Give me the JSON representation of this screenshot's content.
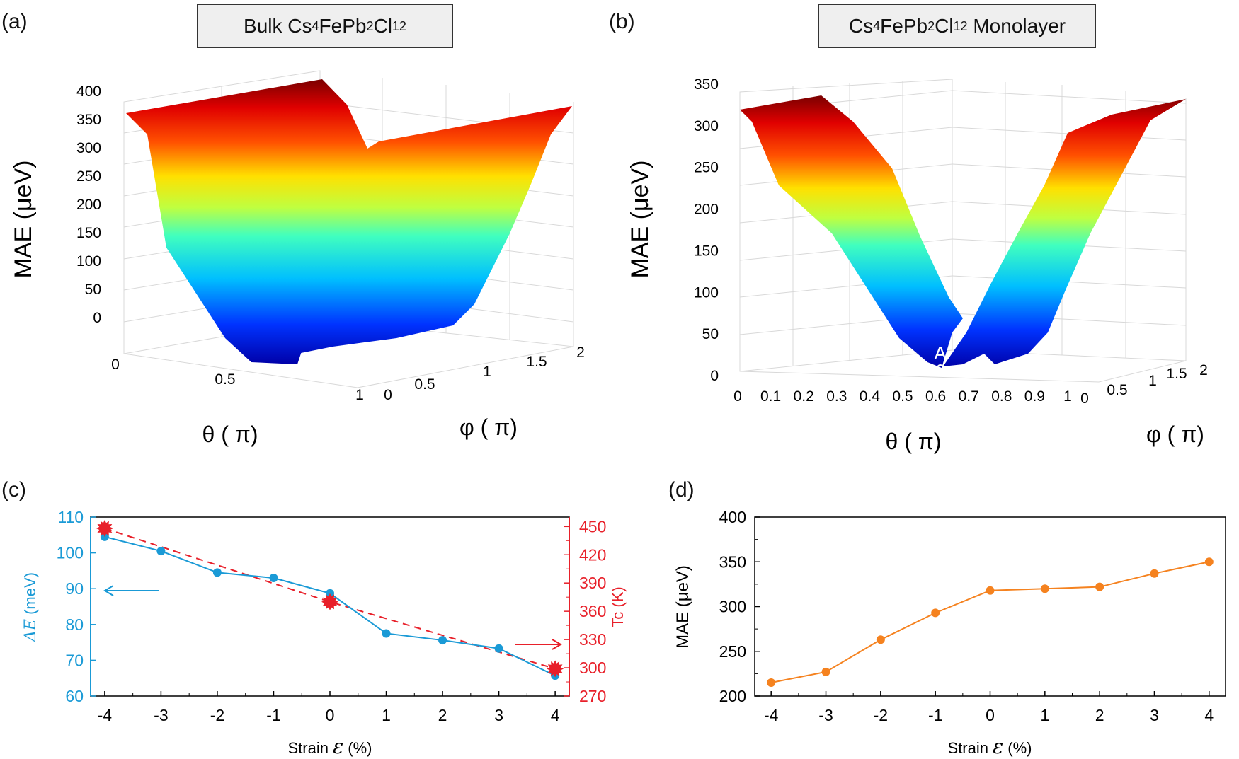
{
  "panels": {
    "a": {
      "label": "(a)",
      "title_main": "Bulk Cs",
      "title_sub1": "4",
      "title_mid1": "FePb",
      "title_sub2": "2",
      "title_mid2": "Cl",
      "title_sub3": "12"
    },
    "b": {
      "label": "(b)",
      "title_main": "Cs",
      "title_sub1": "4",
      "title_mid1": "FePb",
      "title_sub2": "2",
      "title_mid2": "Cl",
      "title_sub3": "12",
      "title_tail": "Monolayer"
    },
    "c": {
      "label": "(c)"
    },
    "d": {
      "label": "(d)"
    }
  },
  "chart_data": [
    {
      "id": "a",
      "type": "surface3d",
      "title": "Bulk Cs4FePb2Cl12",
      "zlabel": "MAE (μeV)",
      "xlabel": "θ ( π)",
      "ylabel": "φ ( π)",
      "z_ticks": [
        "0",
        "50",
        "100",
        "150",
        "200",
        "250",
        "300",
        "350",
        "400"
      ],
      "x_ticks": [
        "0",
        "0.5",
        "1"
      ],
      "y_ticks": [
        "0",
        "0.5",
        "1",
        "1.5",
        "2"
      ],
      "zlim": [
        0,
        400
      ],
      "theta": [
        0,
        0.125,
        0.25,
        0.375,
        0.5,
        0.625,
        0.75,
        0.875,
        1.0
      ],
      "mae_vs_theta": [
        380,
        330,
        250,
        120,
        0,
        120,
        250,
        330,
        380
      ]
    },
    {
      "id": "b",
      "type": "surface3d",
      "title": "Cs4FePb2Cl12 Monolayer",
      "zlabel": "MAE (μeV)",
      "xlabel": "θ ( π)",
      "ylabel": "φ ( π)",
      "z_ticks": [
        "0",
        "50",
        "100",
        "150",
        "200",
        "250",
        "300",
        "350"
      ],
      "x_ticks": [
        "0",
        "0.1",
        "0.2",
        "0.3",
        "0.4",
        "0.5",
        "0.6",
        "0.7",
        "0.8",
        "0.9",
        "1"
      ],
      "y_ticks": [
        "0",
        "0.5",
        "1",
        "1.5",
        "2"
      ],
      "zlim": [
        0,
        350
      ],
      "annotation": "A",
      "theta": [
        0,
        0.1,
        0.2,
        0.3,
        0.4,
        0.5,
        0.6,
        0.7,
        0.8,
        0.9,
        1.0
      ],
      "mae_vs_theta": [
        315,
        300,
        225,
        150,
        75,
        0,
        75,
        150,
        225,
        300,
        315
      ]
    },
    {
      "id": "c",
      "type": "line",
      "xlabel_prefix": "Strain ",
      "xlabel_symbol": "ε",
      "xlabel_suffix": " (%)",
      "ylabel_left_symbol": "ΔE",
      "ylabel_left_unit": " (meV)",
      "ylabel_right": "Tc (K)",
      "x": [
        -4,
        -3,
        -2,
        -1,
        0,
        1,
        2,
        3,
        4
      ],
      "x_ticks": [
        "-4",
        "-3",
        "-2",
        "-1",
        "0",
        "1",
        "2",
        "3",
        "4"
      ],
      "xlim": [
        -4.25,
        4.25
      ],
      "ylim_left": [
        60,
        110
      ],
      "ylim_right": [
        270,
        460
      ],
      "y_left_ticks": [
        "60",
        "70",
        "80",
        "90",
        "100",
        "110"
      ],
      "y_right_ticks": [
        "270",
        "300",
        "330",
        "360",
        "390",
        "420",
        "450"
      ],
      "series": [
        {
          "name": "ΔE",
          "axis": "left",
          "color": "#1a9ad6",
          "style": "solid-dot",
          "values": [
            104.5,
            100.5,
            94.5,
            93,
            88.7,
            77.5,
            75.6,
            73.3,
            65.7
          ]
        },
        {
          "name": "Tc",
          "axis": "right",
          "color": "#e8202a",
          "style": "dashed-star",
          "x": [
            -4,
            0,
            4
          ],
          "values": [
            448,
            370,
            299
          ]
        }
      ]
    },
    {
      "id": "d",
      "type": "line",
      "xlabel_prefix": "Strain ",
      "xlabel_symbol": "ε",
      "xlabel_suffix": " (%)",
      "ylabel": "MAE (μeV)",
      "x": [
        -4,
        -3,
        -2,
        -1,
        0,
        1,
        2,
        3,
        4
      ],
      "x_ticks": [
        "-4",
        "-3",
        "-2",
        "-1",
        "0",
        "1",
        "2",
        "3",
        "4"
      ],
      "xlim": [
        -4.3,
        4.3
      ],
      "ylim": [
        200,
        400
      ],
      "y_ticks": [
        "200",
        "250",
        "300",
        "350",
        "400"
      ],
      "series": [
        {
          "name": "MAE",
          "color": "#f5821f",
          "values": [
            215,
            227,
            263,
            293,
            318,
            320,
            322,
            337,
            350
          ]
        }
      ]
    }
  ]
}
